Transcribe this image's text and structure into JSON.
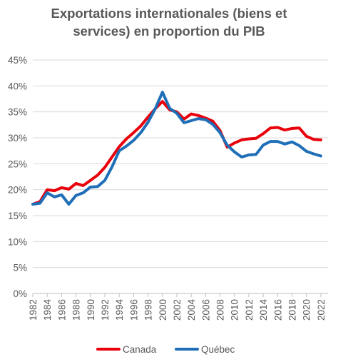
{
  "chart_data": {
    "type": "line",
    "title_line1": "Exportations internationales (biens et",
    "title_line2": "services) en proportion du PIB",
    "xlabel": "",
    "ylabel": "",
    "ylim": [
      0,
      45
    ],
    "ytick_labels": [
      "0%",
      "5%",
      "10%",
      "15%",
      "20%",
      "25%",
      "30%",
      "35%",
      "40%",
      "45%"
    ],
    "ytick_values": [
      0,
      5,
      10,
      15,
      20,
      25,
      30,
      35,
      40,
      45
    ],
    "xlim": [
      1982,
      2023
    ],
    "xtick_values": [
      1982,
      1984,
      1986,
      1988,
      1990,
      1992,
      1994,
      1996,
      1998,
      2000,
      2002,
      2004,
      2006,
      2008,
      2010,
      2012,
      2014,
      2016,
      2018,
      2020,
      2022
    ],
    "xtick_labels": [
      "1982",
      "1984",
      "1986",
      "1988",
      "1990",
      "1992",
      "1994",
      "1996",
      "1998",
      "2000",
      "2002",
      "2004",
      "2006",
      "2008",
      "2010",
      "2012",
      "2014",
      "2016",
      "2018",
      "2020",
      "2022"
    ],
    "grid": true,
    "legend_position": "bottom",
    "x": [
      1982,
      1983,
      1984,
      1985,
      1986,
      1987,
      1988,
      1989,
      1990,
      1991,
      1992,
      1993,
      1994,
      1995,
      1996,
      1997,
      1998,
      1999,
      2000,
      2001,
      2002,
      2003,
      2004,
      2005,
      2006,
      2007,
      2008,
      2009,
      2010,
      2011,
      2012,
      2013,
      2014,
      2015,
      2016,
      2017,
      2018,
      2019,
      2020,
      2021,
      2022,
      2023
    ],
    "series": [
      {
        "name": "Canada",
        "color": "#e8000b",
        "values": [
          17.2,
          17.7,
          20.0,
          19.8,
          20.4,
          20.1,
          21.2,
          20.8,
          21.8,
          22.8,
          24.3,
          26.3,
          28.3,
          29.8,
          31.0,
          32.3,
          34.0,
          35.6,
          37.0,
          35.4,
          35.0,
          33.6,
          34.6,
          34.3,
          33.8,
          33.2,
          31.4,
          28.2,
          29.0,
          29.6,
          29.8,
          29.9,
          30.8,
          31.9,
          32.0,
          31.5,
          31.8,
          31.9,
          30.3,
          29.7,
          29.6,
          null
        ]
      },
      {
        "name": "Québec",
        "color": "#1f6fb8",
        "values": [
          17.2,
          17.4,
          19.4,
          18.6,
          19.0,
          17.2,
          18.9,
          19.4,
          20.5,
          20.6,
          21.8,
          24.4,
          27.5,
          28.4,
          29.5,
          31.0,
          33.0,
          35.6,
          38.8,
          35.7,
          34.7,
          32.9,
          33.3,
          33.7,
          33.5,
          32.6,
          31.0,
          28.6,
          27.3,
          26.3,
          26.7,
          26.8,
          28.6,
          29.3,
          29.3,
          28.8,
          29.2,
          28.5,
          27.4,
          26.9,
          26.5,
          null
        ]
      }
    ]
  }
}
